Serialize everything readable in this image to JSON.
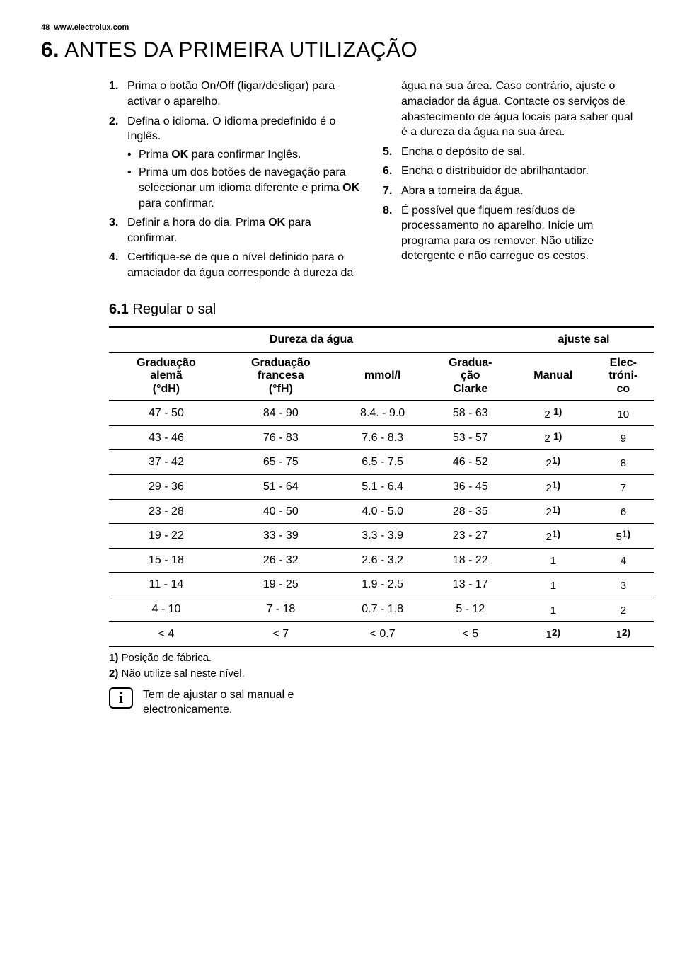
{
  "header": {
    "page_num": "48",
    "url": "www.electrolux.com"
  },
  "title": {
    "num": "6.",
    "text": "ANTES DA PRIMEIRA UTILIZAÇÃO"
  },
  "steps": [
    {
      "text": "Prima o botão On/Off (ligar/desligar) para activar o aparelho."
    },
    {
      "text": "Defina o idioma. O idioma predefinido é o Inglês.",
      "sub": [
        "Prima |OK| para confirmar Inglês.",
        "Prima um dos botões de navegação para seleccionar um idioma diferente e prima |OK| para confirmar."
      ]
    },
    {
      "text": "Definir a hora do dia. Prima |OK| para confirmar."
    },
    {
      "text": "Certifique-se de que o nível definido para o amaciador da água corresponde à dureza da água na sua área. Caso contrário, ajuste o amaciador da água. Contacte os serviços de abastecimento de água locais para saber qual é a dureza da água na sua área."
    },
    {
      "text": "Encha o depósito de sal."
    },
    {
      "text": "Encha o distribuidor de abrilhantador."
    },
    {
      "text": "Abra a torneira da água."
    },
    {
      "text": "É possível que fiquem resíduos de processamento no aparelho. Inicie um programa para os remover. Não utilize detergente e não carregue os cestos."
    }
  ],
  "subsection": {
    "num": "6.1",
    "text": "Regular o sal"
  },
  "table": {
    "group_headers": {
      "hardness": "Dureza da água",
      "salt": "ajuste sal"
    },
    "columns": [
      "Graduação alemã (°dH)",
      "Graduação francesa (°fH)",
      "mmol/l",
      "Graduação Clarke",
      "Manual",
      "Electrónico"
    ],
    "rows": [
      {
        "c": [
          "47 - 50",
          "84 - 90",
          "8.4. - 9.0",
          "58 - 63"
        ],
        "manual": {
          "v": "2",
          "sup": "1)",
          "spaced": true
        },
        "elec": {
          "v": "10"
        }
      },
      {
        "c": [
          "43 - 46",
          "76 - 83",
          "7.6 - 8.3",
          "53 - 57"
        ],
        "manual": {
          "v": "2",
          "sup": "1)",
          "spaced": true
        },
        "elec": {
          "v": "9"
        }
      },
      {
        "c": [
          "37 - 42",
          "65 - 75",
          "6.5 - 7.5",
          "46 - 52"
        ],
        "manual": {
          "v": "2",
          "sup": "1)"
        },
        "elec": {
          "v": "8"
        }
      },
      {
        "c": [
          "29 - 36",
          "51 - 64",
          "5.1 - 6.4",
          "36 - 45"
        ],
        "manual": {
          "v": "2",
          "sup": "1)"
        },
        "elec": {
          "v": "7"
        }
      },
      {
        "c": [
          "23 - 28",
          "40 - 50",
          "4.0 - 5.0",
          "28 - 35"
        ],
        "manual": {
          "v": "2",
          "sup": "1)"
        },
        "elec": {
          "v": "6"
        }
      },
      {
        "c": [
          "19 - 22",
          "33 - 39",
          "3.3 - 3.9",
          "23 - 27"
        ],
        "manual": {
          "v": "2",
          "sup": "1)"
        },
        "elec": {
          "v": "5",
          "sup": "1)"
        }
      },
      {
        "c": [
          "15 - 18",
          "26 - 32",
          "2.6 - 3.2",
          "18 - 22"
        ],
        "manual": {
          "v": "1"
        },
        "elec": {
          "v": "4"
        }
      },
      {
        "c": [
          "11 - 14",
          "19 - 25",
          "1.9 - 2.5",
          "13 - 17"
        ],
        "manual": {
          "v": "1"
        },
        "elec": {
          "v": "3"
        }
      },
      {
        "c": [
          "4 - 10",
          "7 - 18",
          "0.7 - 1.8",
          "5 - 12"
        ],
        "manual": {
          "v": "1"
        },
        "elec": {
          "v": "2"
        }
      },
      {
        "c": [
          "< 4",
          "< 7",
          "< 0.7",
          "< 5"
        ],
        "manual": {
          "v": "1",
          "sup": "2)"
        },
        "elec": {
          "v": "1",
          "sup": "2)"
        }
      }
    ]
  },
  "footnotes": [
    {
      "mark": "1)",
      "text": "Posição de fábrica."
    },
    {
      "mark": "2)",
      "text": "Não utilize sal neste nível."
    }
  ],
  "info": {
    "icon": "i",
    "text": "Tem de ajustar o sal manual e electronicamente."
  }
}
